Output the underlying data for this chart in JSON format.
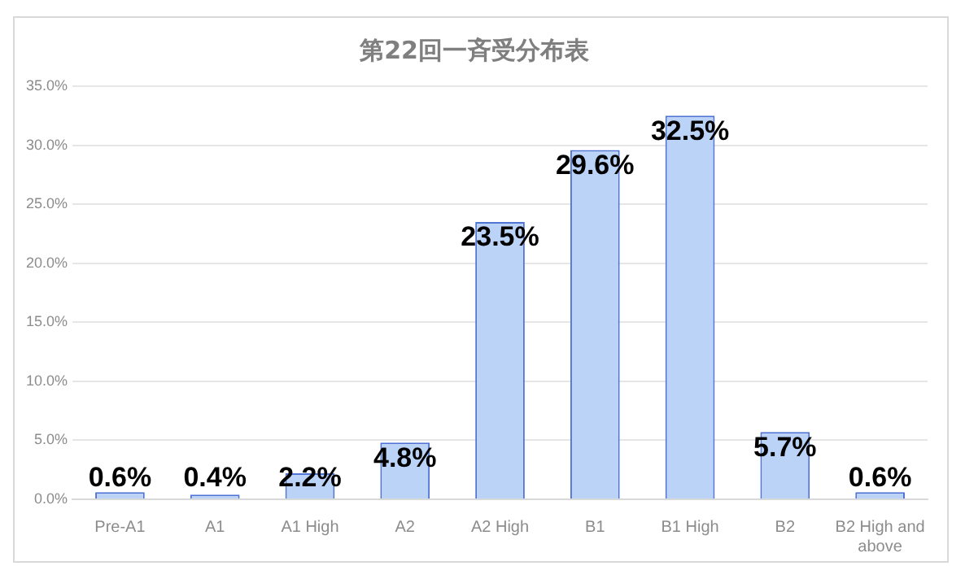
{
  "chart_data": {
    "type": "bar",
    "title": "第22回一斉受分布表",
    "categories": [
      "Pre-A1",
      "A1",
      "A1 High",
      "A2",
      "A2 High",
      "B1",
      "B1 High",
      "B2",
      "B2 High and above"
    ],
    "values": [
      0.6,
      0.4,
      2.2,
      4.8,
      23.5,
      29.6,
      32.5,
      5.7,
      0.6
    ],
    "value_labels": [
      "0.6%",
      "0.4%",
      "2.2%",
      "4.8%",
      "23.5%",
      "29.6%",
      "32.5%",
      "5.7%",
      "0.6%"
    ],
    "color": "#bcd3f8",
    "ylim": [
      0,
      35
    ],
    "yticks": [
      {
        "value": 0,
        "label": "0.0%"
      },
      {
        "value": 5,
        "label": "5.0%"
      },
      {
        "value": 10,
        "label": "10.0%"
      },
      {
        "value": 15,
        "label": "15.0%"
      },
      {
        "value": 20,
        "label": "20.0%"
      },
      {
        "value": 25,
        "label": "25.0%"
      },
      {
        "value": 30,
        "label": "30.0%"
      },
      {
        "value": 35,
        "label": "35.0%"
      }
    ],
    "grid": "y",
    "legend": false
  }
}
